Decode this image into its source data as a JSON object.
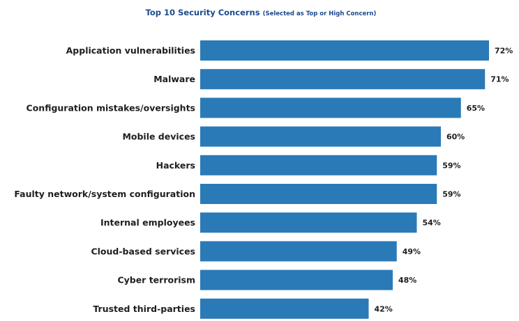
{
  "chart_data": {
    "type": "bar",
    "orientation": "horizontal",
    "title": "Top 10 Security Concerns",
    "subtitle": "(Selected as Top or High Concern)",
    "categories": [
      "Application vulnerabilities",
      "Malware",
      "Configuration mistakes/oversights",
      "Mobile devices",
      "Hackers",
      "Faulty network/system configuration",
      "Internal employees",
      "Cloud-based services",
      "Cyber terrorism",
      "Trusted third-parties"
    ],
    "values": [
      72,
      71,
      65,
      60,
      59,
      59,
      54,
      49,
      48,
      42
    ],
    "value_labels": [
      "72%",
      "71%",
      "65%",
      "60%",
      "59%",
      "59%",
      "54%",
      "49%",
      "48%",
      "42%"
    ],
    "xlim": [
      0,
      72
    ],
    "grid": false,
    "legend": "none",
    "bar_color": "#2a7ab8",
    "title_color": "#1c4a8c"
  }
}
